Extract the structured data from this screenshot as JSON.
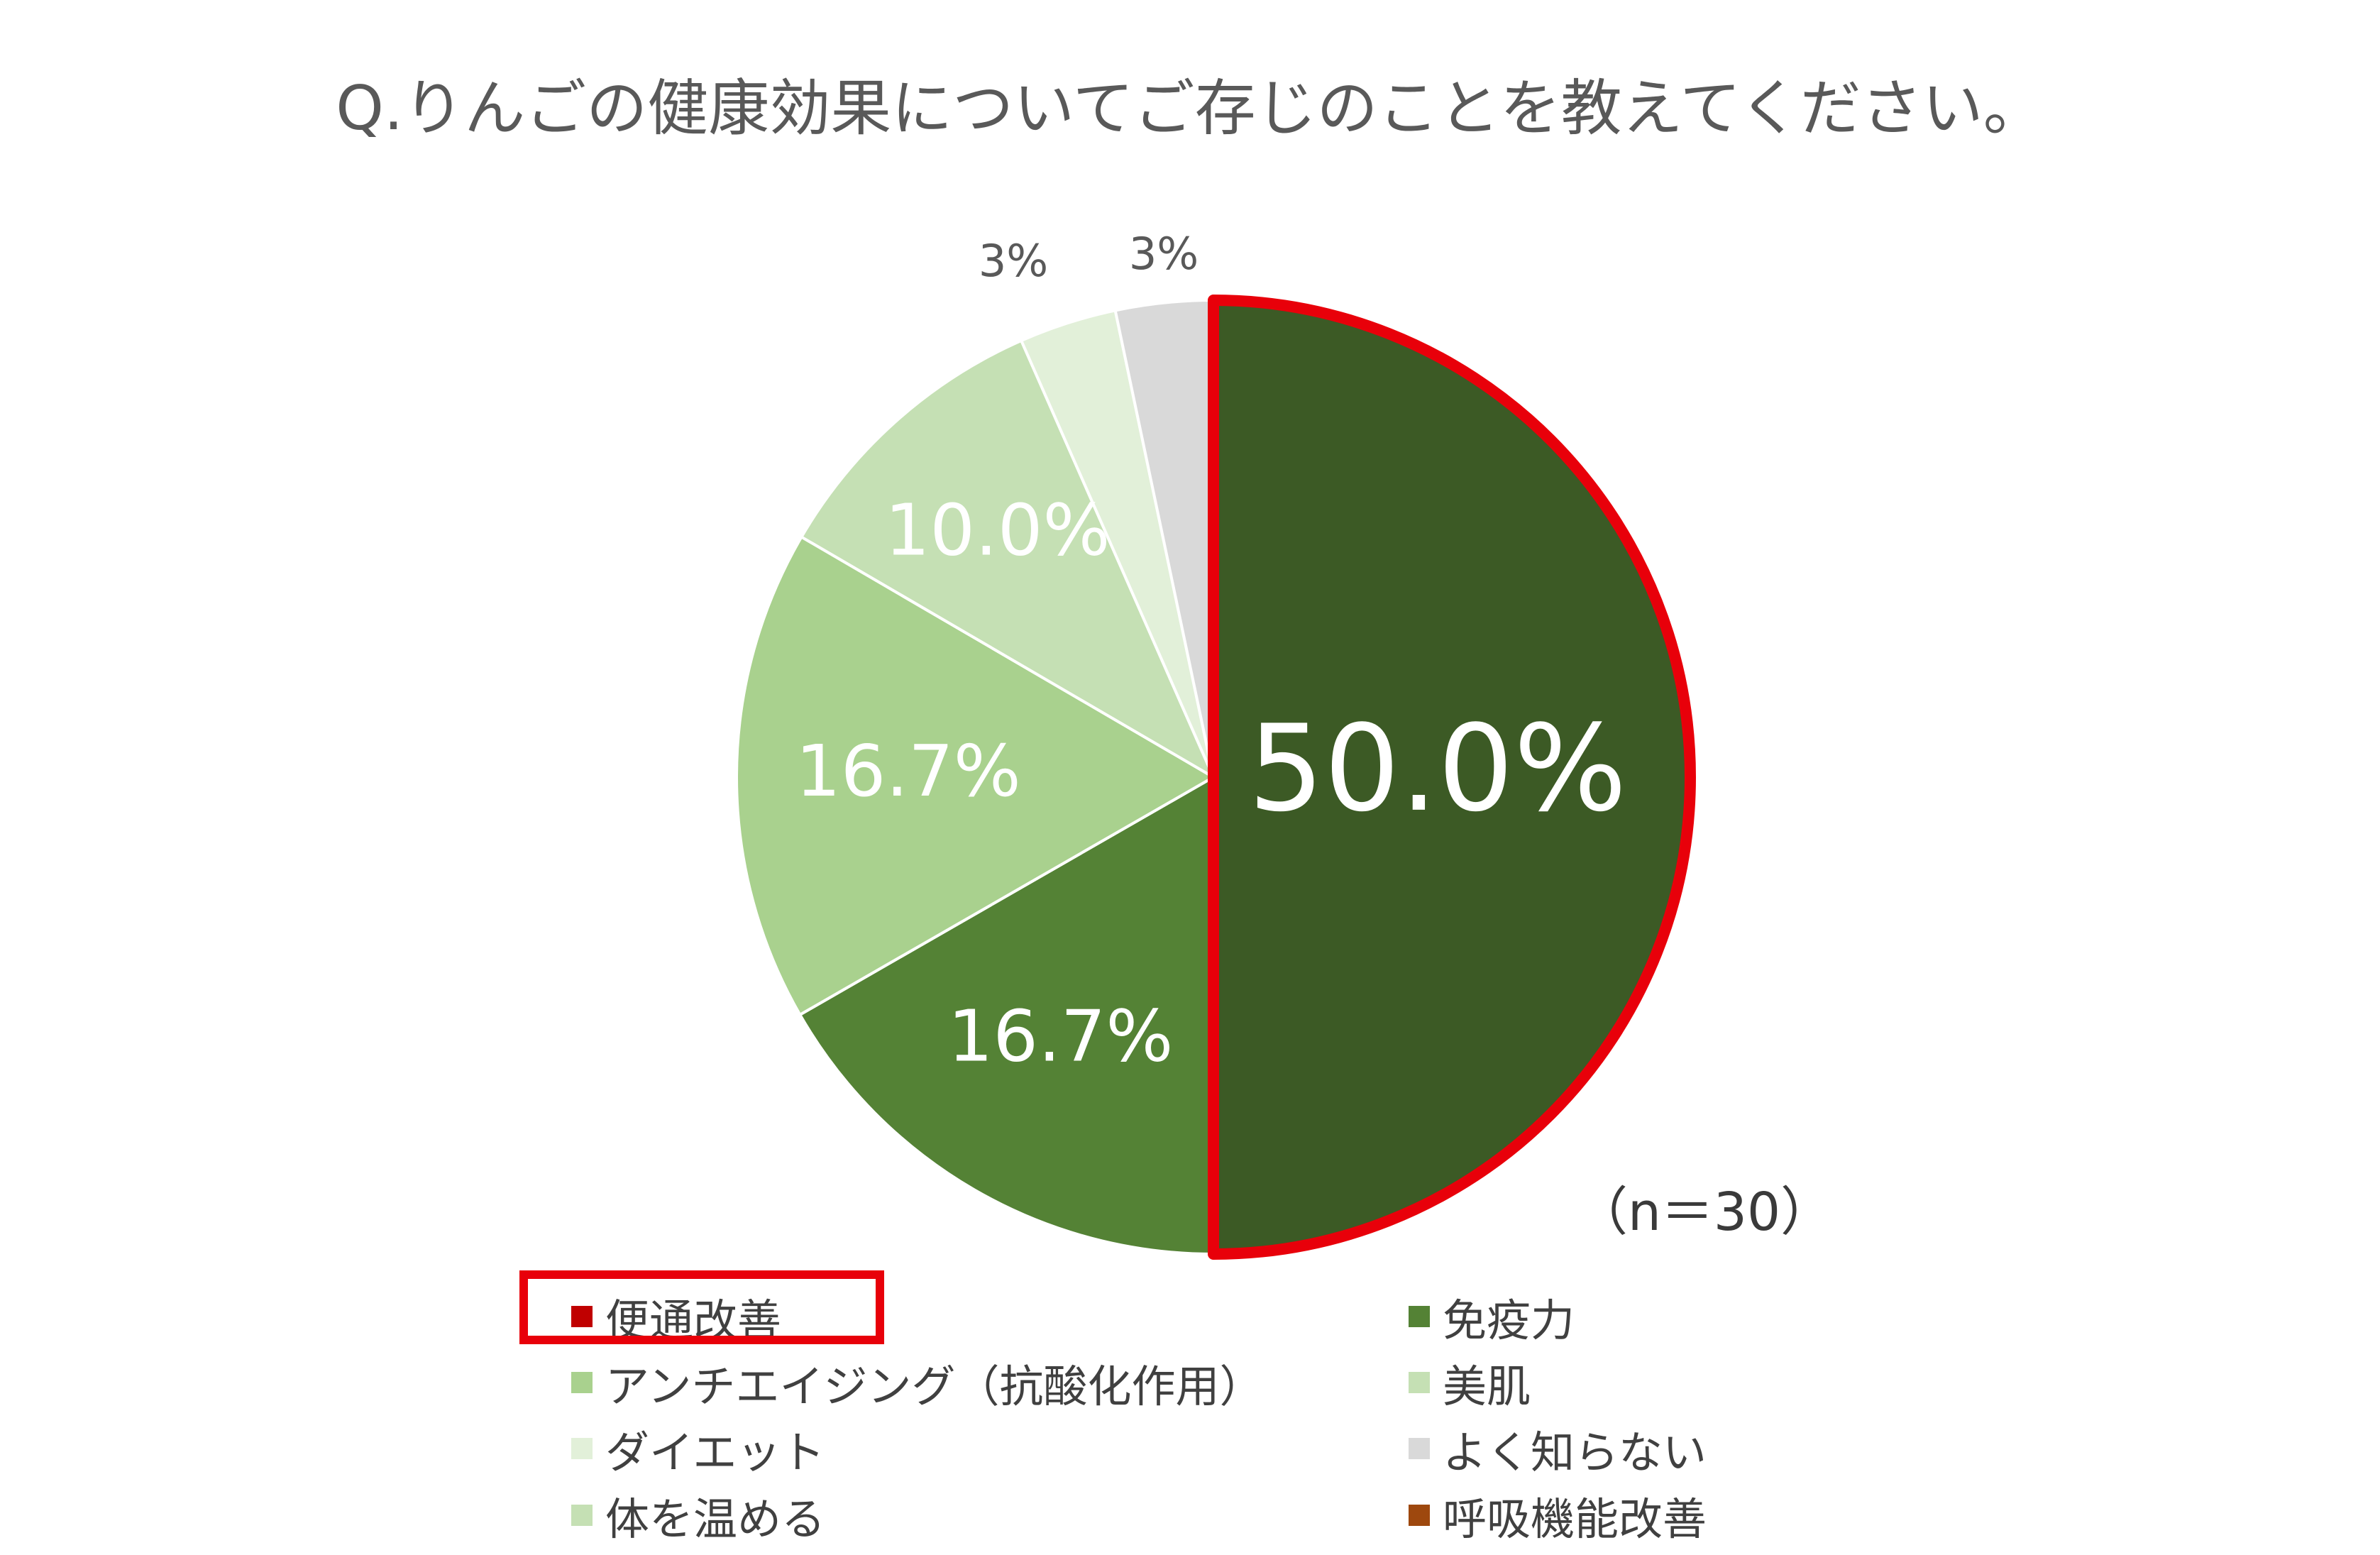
{
  "title": "Q.りんごの健康効果についてご存じのことを教えてください。",
  "sample_note": "（n＝30）",
  "colors": {
    "highlight": "#e8000a"
  },
  "chart_data": {
    "type": "pie",
    "title": "Q.りんごの健康効果についてご存じのことを教えてください。",
    "start_angle_deg": 0,
    "direction": "clockwise",
    "slices": [
      {
        "name": "便通改善",
        "value": 50.0,
        "label": "50.0%",
        "color": "#3c5a25",
        "highlighted": true
      },
      {
        "name": "免疫力",
        "value": 16.7,
        "label": "16.7%",
        "color": "#548235"
      },
      {
        "name": "アンチエイジング（抗酸化作用）",
        "value": 16.7,
        "label": "16.7%",
        "color": "#a9d18e"
      },
      {
        "name": "美肌",
        "value": 10.0,
        "label": "10.0%",
        "color": "#c5e0b4"
      },
      {
        "name": "ダイエット",
        "value": 3.3,
        "label": "3%",
        "color": "#e2f0d9"
      },
      {
        "name": "よく知らない",
        "value": 3.3,
        "label": "3%",
        "color": "#d9d9d9"
      },
      {
        "name": "体を温める",
        "value": 0,
        "label": "",
        "color": "#c5e0b4"
      },
      {
        "name": "呼吸機能改善",
        "value": 0,
        "label": "",
        "color": "#9e480e"
      }
    ],
    "legend": {
      "placement": "bottom",
      "columns": 2,
      "items": [
        {
          "label": "便通改善",
          "color": "#c00000",
          "highlighted": true
        },
        {
          "label": "免疫力",
          "color": "#548235"
        },
        {
          "label": "アンチエイジング（抗酸化作用）",
          "color": "#a9d18e"
        },
        {
          "label": "美肌",
          "color": "#c5e0b4"
        },
        {
          "label": "ダイエット",
          "color": "#e2f0d9"
        },
        {
          "label": "よく知らない",
          "color": "#d9d9d9"
        },
        {
          "label": "体を温める",
          "color": "#c5e0b4"
        },
        {
          "label": "呼吸機能改善",
          "color": "#9e480e"
        }
      ]
    }
  }
}
